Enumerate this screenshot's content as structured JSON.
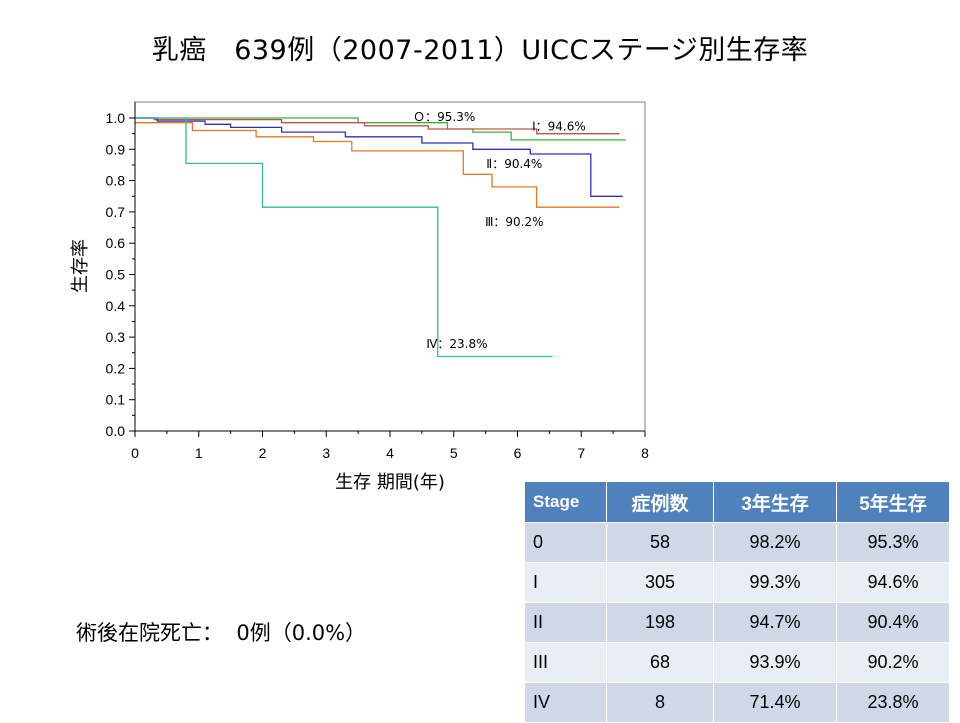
{
  "slide": {
    "title": "乳癌　639例（2007-2011）UICCステージ別生存率",
    "note": "術後在院死亡：  0例（0.0%）"
  },
  "chart_data": {
    "type": "line",
    "step": true,
    "title": "",
    "xlabel": "生存 期間(年)",
    "ylabel": "生存率",
    "xlim": [
      0,
      8
    ],
    "ylim": [
      0.0,
      1.0
    ],
    "xticks": [
      "0",
      "1",
      "2",
      "3",
      "4",
      "5",
      "6",
      "7",
      "8"
    ],
    "yticks": [
      "0.0",
      "0.1",
      "0.2",
      "0.3",
      "0.4",
      "0.5",
      "0.6",
      "0.7",
      "0.8",
      "0.9",
      "1.0"
    ],
    "series": [
      {
        "name": "0",
        "label": "Ｏ：95.3%",
        "color": "#3aaf3a",
        "points": [
          [
            0,
            1.0
          ],
          [
            3.5,
            1.0
          ],
          [
            3.5,
            0.985
          ],
          [
            4.9,
            0.985
          ],
          [
            4.9,
            0.965
          ],
          [
            5.3,
            0.965
          ],
          [
            5.3,
            0.955
          ],
          [
            5.9,
            0.955
          ],
          [
            5.9,
            0.93
          ],
          [
            7.7,
            0.93
          ]
        ]
      },
      {
        "name": "I",
        "label": "Ⅰ：94.6%",
        "color": "#c0504d",
        "points": [
          [
            0,
            1.0
          ],
          [
            0.3,
            1.0
          ],
          [
            0.3,
            0.995
          ],
          [
            2.3,
            0.995
          ],
          [
            2.3,
            0.985
          ],
          [
            3.6,
            0.985
          ],
          [
            3.6,
            0.975
          ],
          [
            4.6,
            0.975
          ],
          [
            4.6,
            0.965
          ],
          [
            6.3,
            0.965
          ],
          [
            6.3,
            0.95
          ],
          [
            7.6,
            0.95
          ]
        ]
      },
      {
        "name": "II",
        "label": "Ⅱ：90.4%",
        "color": "#3030c0",
        "points": [
          [
            0,
            1.0
          ],
          [
            0.35,
            1.0
          ],
          [
            0.35,
            0.99
          ],
          [
            1.1,
            0.99
          ],
          [
            1.1,
            0.98
          ],
          [
            1.5,
            0.98
          ],
          [
            1.5,
            0.97
          ],
          [
            2.3,
            0.97
          ],
          [
            2.3,
            0.955
          ],
          [
            3.3,
            0.955
          ],
          [
            3.3,
            0.94
          ],
          [
            4.5,
            0.94
          ],
          [
            4.5,
            0.92
          ],
          [
            5.3,
            0.92
          ],
          [
            5.3,
            0.9
          ],
          [
            6.2,
            0.9
          ],
          [
            6.2,
            0.885
          ],
          [
            7.15,
            0.885
          ],
          [
            7.15,
            0.75
          ],
          [
            7.65,
            0.75
          ]
        ]
      },
      {
        "name": "III",
        "label": "Ⅲ：90.2%",
        "color": "#e87722",
        "points": [
          [
            0,
            0.985
          ],
          [
            0.9,
            0.985
          ],
          [
            0.9,
            0.96
          ],
          [
            1.9,
            0.96
          ],
          [
            1.9,
            0.94
          ],
          [
            2.8,
            0.94
          ],
          [
            2.8,
            0.925
          ],
          [
            3.4,
            0.925
          ],
          [
            3.4,
            0.895
          ],
          [
            5.15,
            0.895
          ],
          [
            5.15,
            0.82
          ],
          [
            5.6,
            0.82
          ],
          [
            5.6,
            0.78
          ],
          [
            6.3,
            0.78
          ],
          [
            6.3,
            0.715
          ],
          [
            7.6,
            0.715
          ]
        ]
      },
      {
        "name": "IV",
        "label": "Ⅳ：23.8%",
        "color": "#36b898",
        "points": [
          [
            0,
            1.0
          ],
          [
            0.8,
            1.0
          ],
          [
            0.8,
            0.855
          ],
          [
            2.0,
            0.855
          ],
          [
            2.0,
            0.715
          ],
          [
            4.75,
            0.715
          ],
          [
            4.75,
            0.238
          ],
          [
            6.55,
            0.238
          ]
        ]
      }
    ]
  },
  "table": {
    "headers": [
      "Stage",
      "症例数",
      "3年生存",
      "5年生存"
    ],
    "rows": [
      [
        "0",
        "58",
        "98.2%",
        "95.3%"
      ],
      [
        "I",
        "305",
        "99.3%",
        "94.6%"
      ],
      [
        "II",
        "198",
        "94.7%",
        "90.4%"
      ],
      [
        "III",
        "68",
        "93.9%",
        "90.2%"
      ],
      [
        "IV",
        "8",
        "71.4%",
        "23.8%"
      ]
    ]
  }
}
